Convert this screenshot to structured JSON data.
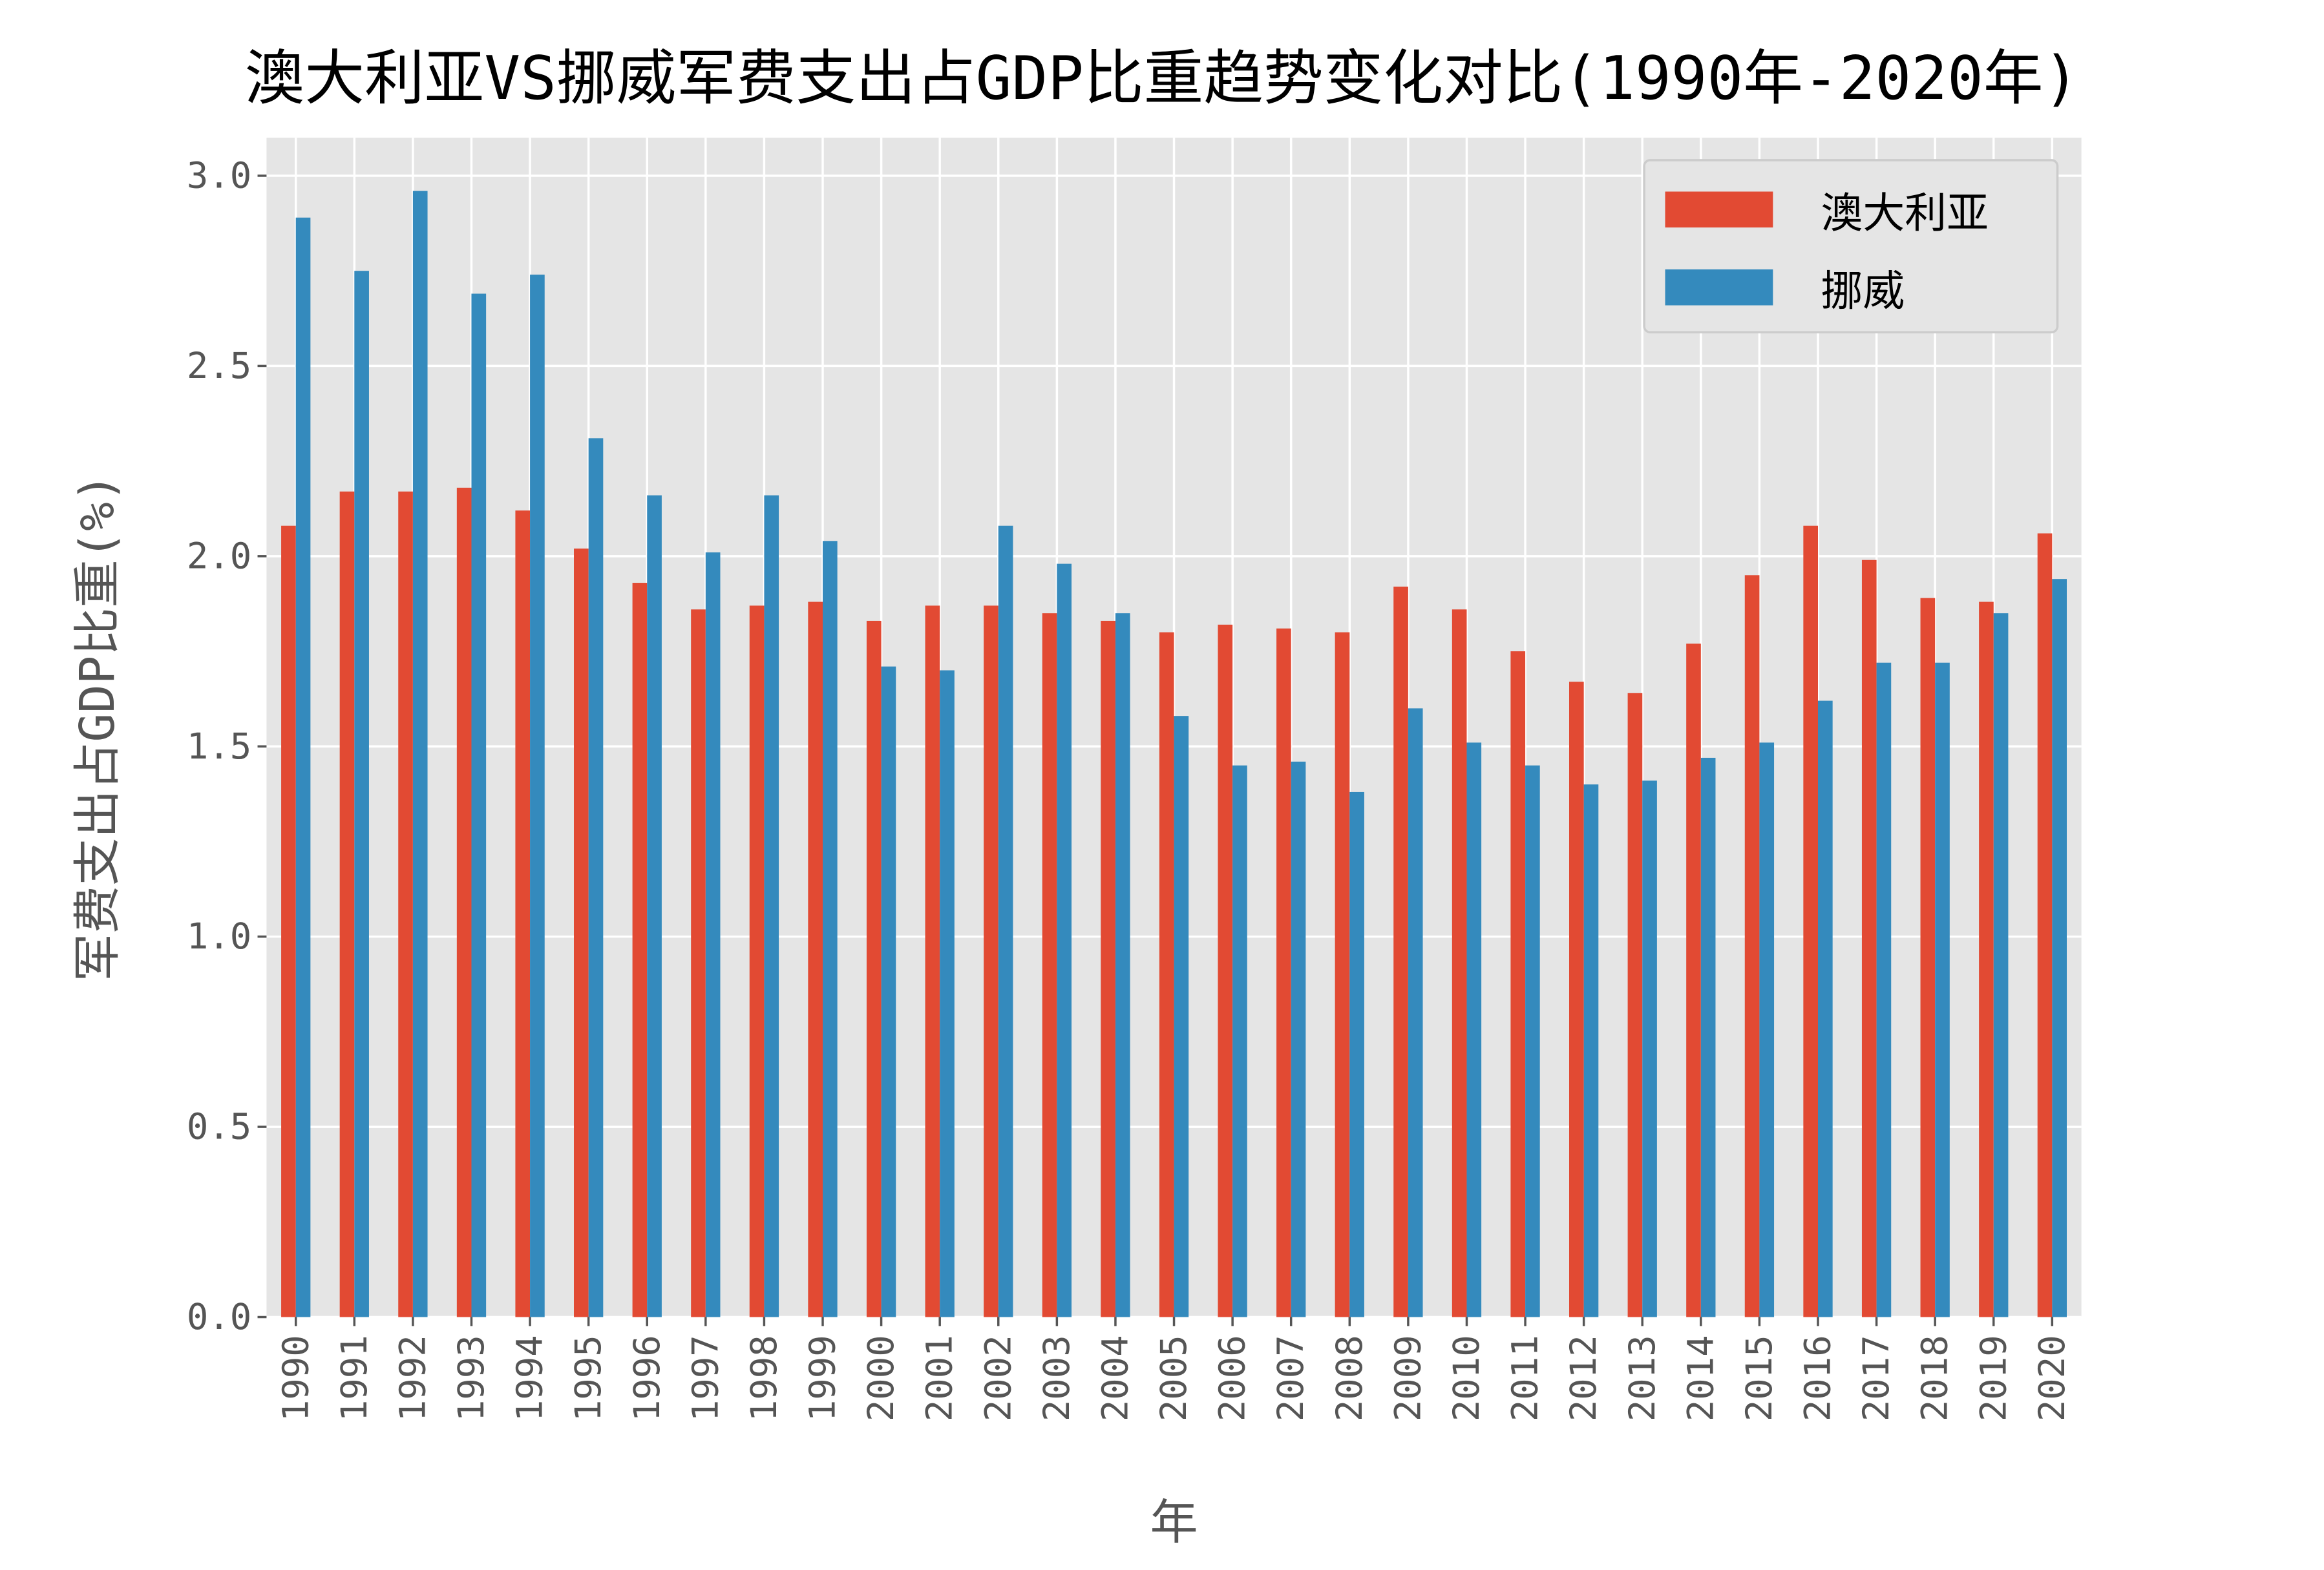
{
  "chart_data": {
    "type": "bar",
    "title": "澳大利亚VS挪威军费支出占GDP比重趋势变化对比(1990年-2020年)",
    "xlabel": "年",
    "ylabel": "军费支出占GDP比重(%)",
    "ylim": [
      0,
      3.1
    ],
    "yticks": [
      "0.0",
      "0.5",
      "1.0",
      "1.5",
      "2.0",
      "2.5",
      "3.0"
    ],
    "grid": true,
    "legend_position": "top-right",
    "categories": [
      "1990",
      "1991",
      "1992",
      "1993",
      "1994",
      "1995",
      "1996",
      "1997",
      "1998",
      "1999",
      "2000",
      "2001",
      "2002",
      "2003",
      "2004",
      "2005",
      "2006",
      "2007",
      "2008",
      "2009",
      "2010",
      "2011",
      "2012",
      "2013",
      "2014",
      "2015",
      "2016",
      "2017",
      "2018",
      "2019",
      "2020"
    ],
    "series": [
      {
        "name": "澳大利亚",
        "color": "#E24A33",
        "values": [
          2.08,
          2.17,
          2.17,
          2.18,
          2.12,
          2.02,
          1.93,
          1.86,
          1.87,
          1.88,
          1.83,
          1.87,
          1.87,
          1.85,
          1.83,
          1.8,
          1.82,
          1.81,
          1.8,
          1.92,
          1.86,
          1.75,
          1.67,
          1.64,
          1.77,
          1.95,
          2.08,
          1.99,
          1.89,
          1.88,
          2.06
        ]
      },
      {
        "name": "挪威",
        "color": "#348ABD",
        "values": [
          2.89,
          2.75,
          2.96,
          2.69,
          2.74,
          2.31,
          2.16,
          2.01,
          2.16,
          2.04,
          1.71,
          1.7,
          2.08,
          1.98,
          1.85,
          1.58,
          1.45,
          1.46,
          1.38,
          1.6,
          1.51,
          1.45,
          1.4,
          1.41,
          1.47,
          1.51,
          1.62,
          1.72,
          1.72,
          1.85,
          1.94
        ]
      }
    ]
  }
}
